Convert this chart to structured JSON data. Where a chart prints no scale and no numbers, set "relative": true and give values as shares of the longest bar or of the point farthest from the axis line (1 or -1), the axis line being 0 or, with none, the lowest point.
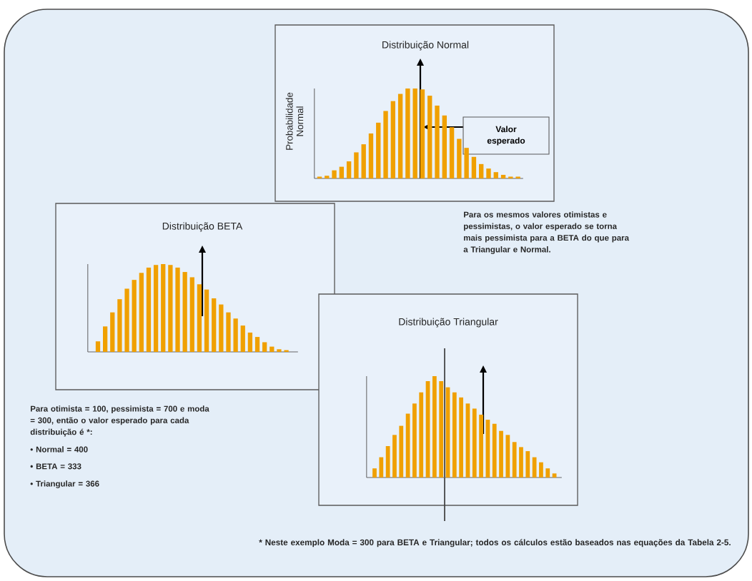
{
  "chart_data": [
    {
      "type": "bar",
      "title": "Distribuição Normal",
      "ylabel": "Probabilidade Normal",
      "relative": true,
      "color": "#f0a000",
      "categories": [
        null,
        null,
        null,
        null,
        null,
        null,
        null,
        null,
        null,
        null,
        null,
        null,
        null,
        null,
        null,
        null,
        null,
        null,
        null,
        null,
        null,
        null,
        null,
        null,
        null,
        null,
        null,
        null
      ],
      "values": [
        0.02,
        0.03,
        0.09,
        0.13,
        0.19,
        0.29,
        0.38,
        0.5,
        0.62,
        0.75,
        0.86,
        0.94,
        1,
        1,
        0.99,
        0.92,
        0.81,
        0.7,
        0.57,
        0.44,
        0.34,
        0.24,
        0.16,
        0.11,
        0.07,
        0.04,
        0.02,
        0.02
      ],
      "annotations": [
        "Valor esperado"
      ]
    },
    {
      "type": "bar",
      "title": "Distribuição BETA",
      "relative": true,
      "color": "#f0a000",
      "categories": [
        null,
        null,
        null,
        null,
        null,
        null,
        null,
        null,
        null,
        null,
        null,
        null,
        null,
        null,
        null,
        null,
        null,
        null,
        null,
        null,
        null,
        null,
        null,
        null,
        null,
        null,
        null
      ],
      "values": [
        0.12,
        0.29,
        0.45,
        0.6,
        0.72,
        0.82,
        0.9,
        0.96,
        0.99,
        1,
        0.99,
        0.96,
        0.91,
        0.85,
        0.77,
        0.71,
        0.61,
        0.54,
        0.45,
        0.38,
        0.3,
        0.22,
        0.17,
        0.11,
        0.06,
        0.03,
        0.02
      ]
    },
    {
      "type": "bar",
      "title": "Distribuição Triangular",
      "relative": true,
      "color": "#f0a000",
      "categories": [
        null,
        null,
        null,
        null,
        null,
        null,
        null,
        null,
        null,
        null,
        null,
        null,
        null,
        null,
        null,
        null,
        null,
        null,
        null,
        null,
        null,
        null,
        null,
        null,
        null,
        null,
        null,
        null
      ],
      "values": [
        0.09,
        0.2,
        0.31,
        0.42,
        0.51,
        0.63,
        0.73,
        0.84,
        0.95,
        1,
        0.95,
        0.89,
        0.84,
        0.79,
        0.73,
        0.68,
        0.62,
        0.57,
        0.53,
        0.46,
        0.42,
        0.35,
        0.3,
        0.26,
        0.2,
        0.15,
        0.09,
        0.04
      ]
    },
    {
      "type": "other",
      "annotations": [
        "Para os mesmos valores otimistas e pessimistas, o valor esperado se torna mais  pessimista para a  BETA do que para a Triangular e Normal.",
        "Para otimista = 100, pessimista = 700 e moda = 300, então o valor esperado para cada distribuição é *:",
        "• Normal = 400",
        "• BETA = 333",
        "• Triangular = 366",
        "* Neste exemplo Moda = 300 para BETA e Triangular;  todos os cálculos estão baseados nas equações da Tabela 2-5."
      ]
    }
  ]
}
